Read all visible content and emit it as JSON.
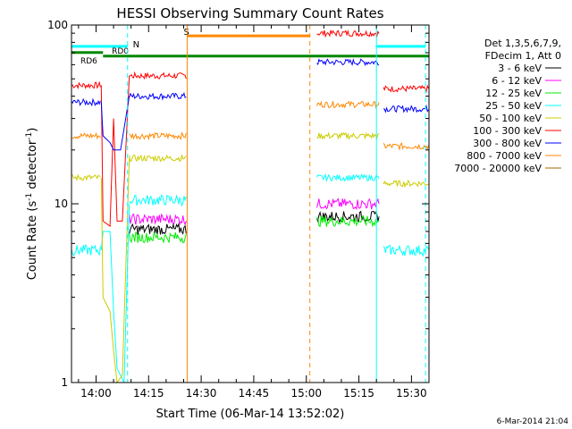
{
  "chart_data": {
    "type": "line",
    "title": "HESSI Observing Summary Count Rates",
    "xlabel": "Start Time (06-Mar-14 13:52:02)",
    "ylabel_main": "Count Rate (s",
    "ylabel_sup1": "-1",
    "ylabel_mid": " detector",
    "ylabel_sup2": "-1",
    "ylabel_end": ")",
    "stamp": "6-Mar-2014 21:04",
    "x_range_min": [
      -7,
      95
    ],
    "y_range": [
      1,
      100
    ],
    "y_scale": "log",
    "x_ticks": [
      {
        "min": 0,
        "label": "14:00"
      },
      {
        "min": 15,
        "label": "14:15"
      },
      {
        "min": 30,
        "label": "14:30"
      },
      {
        "min": 45,
        "label": "14:45"
      },
      {
        "min": 60,
        "label": "15:00"
      },
      {
        "min": 75,
        "label": "15:15"
      },
      {
        "min": 90,
        "label": "15:30"
      }
    ],
    "y_ticks": [
      {
        "value": 1,
        "label": "1"
      },
      {
        "value": 10,
        "label": "10"
      },
      {
        "value": 100,
        "label": "100"
      }
    ],
    "legend": {
      "position": "right",
      "header": [
        "Det 1,3,5,6,7,9,",
        "FDecim 1, Att 0"
      ],
      "entries": [
        {
          "label": "3 - 6 keV",
          "color": "#000000"
        },
        {
          "label": "6 - 12 keV",
          "color": "#ff00ff"
        },
        {
          "label": "12 - 25 keV",
          "color": "#00ee00"
        },
        {
          "label": "25 - 50 keV",
          "color": "#00ffff"
        },
        {
          "label": "50 - 100 keV",
          "color": "#cccc00"
        },
        {
          "label": "100 - 300 keV",
          "color": "#ff0000"
        },
        {
          "label": "300 - 800 keV",
          "color": "#0000ff"
        },
        {
          "label": "800 - 7000 keV",
          "color": "#ff8800"
        },
        {
          "label": "7000 - 20000 keV",
          "color": "#aa6600"
        }
      ]
    },
    "segments": [
      {
        "from": -7,
        "to": 1.5
      },
      {
        "from": 9.5,
        "to": 26
      },
      {
        "from": 63,
        "to": 81
      },
      {
        "from": 82,
        "to": 95
      }
    ],
    "series": [
      {
        "color": "#ff0000",
        "levels": [
          46,
          52,
          90,
          44
        ]
      },
      {
        "color": "#0000ff",
        "levels": [
          37,
          40,
          62,
          34
        ]
      },
      {
        "color": "#ff8800",
        "levels": [
          24,
          24,
          36,
          21
        ]
      },
      {
        "color": "#cccc00",
        "levels": [
          14,
          18,
          24,
          13
        ]
      },
      {
        "color": "#00ffff",
        "levels": [
          5.5,
          10.5,
          14,
          5.5
        ]
      },
      {
        "color": "#ff00ff",
        "levels": [
          null,
          8.2,
          10,
          null
        ]
      },
      {
        "color": "#000000",
        "levels": [
          null,
          7.2,
          8.5,
          null
        ]
      },
      {
        "color": "#00ee00",
        "levels": [
          null,
          6.5,
          8,
          null
        ]
      }
    ],
    "gap_traces": [
      {
        "color": "#00ffff",
        "points": [
          [
            1.5,
            5.5
          ],
          [
            2,
            7
          ],
          [
            4,
            7
          ],
          [
            5,
            2.5
          ],
          [
            6,
            1.2
          ],
          [
            8,
            1
          ],
          [
            9.5,
            10
          ]
        ]
      },
      {
        "color": "#cccc00",
        "points": [
          [
            1.5,
            14
          ],
          [
            2,
            3
          ],
          [
            4,
            2.5
          ],
          [
            5,
            1.5
          ],
          [
            6,
            1
          ],
          [
            7.5,
            1.1
          ],
          [
            9.5,
            18
          ]
        ]
      },
      {
        "color": "#ff0000",
        "points": [
          [
            1.5,
            46
          ],
          [
            2,
            8
          ],
          [
            4,
            7.5
          ],
          [
            5,
            30
          ],
          [
            6,
            8
          ],
          [
            7.5,
            8
          ],
          [
            9.5,
            52
          ]
        ]
      },
      {
        "color": "#0000ff",
        "points": [
          [
            1.5,
            37
          ],
          [
            2,
            24
          ],
          [
            4,
            22
          ],
          [
            5,
            20
          ],
          [
            7,
            20
          ],
          [
            9.5,
            40
          ]
        ]
      }
    ],
    "flags": {
      "rd6": {
        "label": "RD6",
        "from": -7,
        "to": 2,
        "y": 67
      },
      "rd0": {
        "label": "RD0",
        "from": 2,
        "to": 95,
        "y": 67
      },
      "n_bars": [
        {
          "from": -7,
          "to": 9
        },
        {
          "from": 80,
          "to": 94
        }
      ],
      "n_label": "N",
      "s_bar": {
        "from": 26,
        "to": 61
      },
      "s_label": "S"
    },
    "vlines": [
      {
        "min": 9,
        "color": "#00ffff",
        "dashed": true
      },
      {
        "min": 26,
        "color": "#ff8800",
        "dashed": false
      },
      {
        "min": 61,
        "color": "#ff8800",
        "dashed": true
      },
      {
        "min": 80,
        "color": "#00ffff",
        "dashed": false
      },
      {
        "min": 94,
        "color": "#00ffff",
        "dashed": true
      }
    ]
  }
}
